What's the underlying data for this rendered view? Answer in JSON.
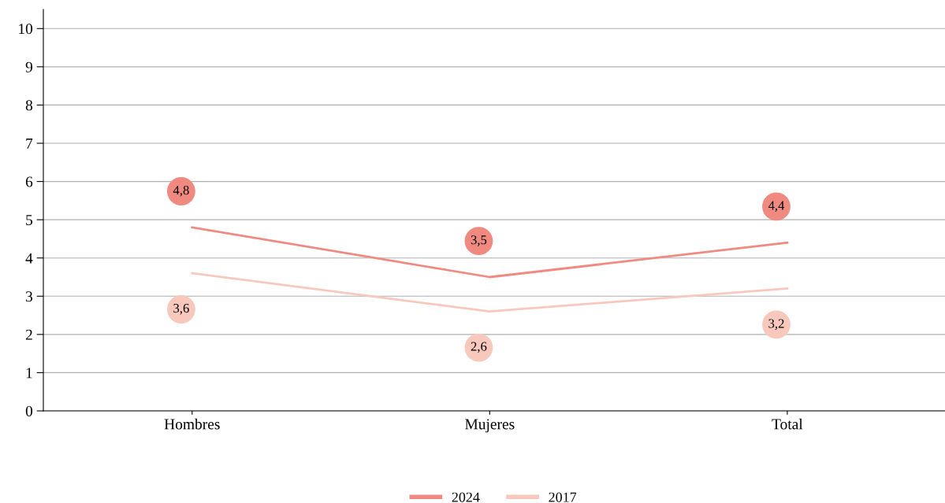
{
  "chart_data": {
    "type": "line",
    "categories": [
      "Hombres",
      "Mujeres",
      "Total"
    ],
    "series": [
      {
        "name": "2024",
        "color": "#f08a80",
        "values": [
          4.8,
          3.5,
          4.4
        ],
        "value_labels": [
          "4,8",
          "3,5",
          "4,4"
        ]
      },
      {
        "name": "2017",
        "color": "#f8c8bd",
        "values": [
          3.6,
          2.6,
          3.2
        ],
        "value_labels": [
          "3,6",
          "2,6",
          "3,2"
        ]
      }
    ],
    "ylim": [
      0,
      10.5
    ],
    "yticks": [
      0,
      1,
      2,
      3,
      4,
      5,
      6,
      7,
      8,
      9,
      10
    ],
    "grid": "y",
    "legend": "bottom",
    "marker": "none",
    "line_style": "solid"
  }
}
